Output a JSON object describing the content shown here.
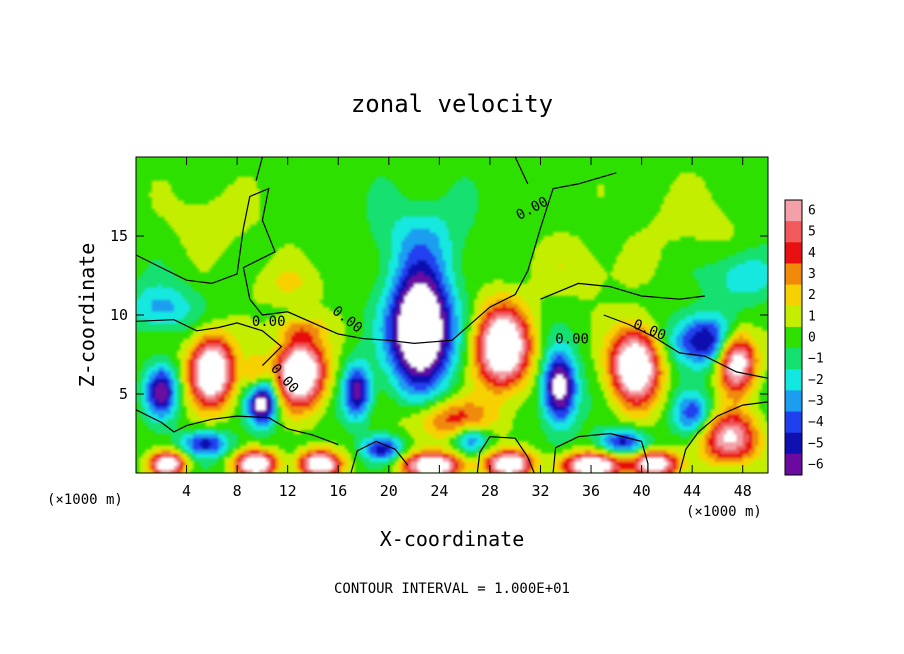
{
  "chart_data": {
    "type": "heatmap",
    "title": "zonal velocity",
    "xlabel": "X-coordinate",
    "ylabel": "Z-coordinate",
    "x_unit_note": "(×1000 m)",
    "xlim": [
      0,
      50
    ],
    "ylim": [
      0,
      20
    ],
    "x_ticks": [
      4,
      8,
      12,
      16,
      20,
      24,
      28,
      32,
      36,
      40,
      44,
      48
    ],
    "y_ticks": [
      5,
      10,
      15
    ],
    "colorbar": {
      "levels": [
        6,
        5,
        4,
        3,
        2,
        1,
        0,
        -1,
        -2,
        -3,
        -4,
        -5,
        -6
      ],
      "colors": [
        "#f3a0a8",
        "#f05a5a",
        "#e81010",
        "#f08a08",
        "#f7d000",
        "#c4ee00",
        "#2ee000",
        "#14e070",
        "#12e8e0",
        "#1c9ef0",
        "#2040f0",
        "#1010b0",
        "#6a0aa0"
      ]
    },
    "contour_labels": [
      "0.00",
      "0.00",
      "0.00",
      "0.00",
      "0.00",
      "0.00"
    ],
    "footer": "CONTOUR INTERVAL = 1.000E+01"
  }
}
